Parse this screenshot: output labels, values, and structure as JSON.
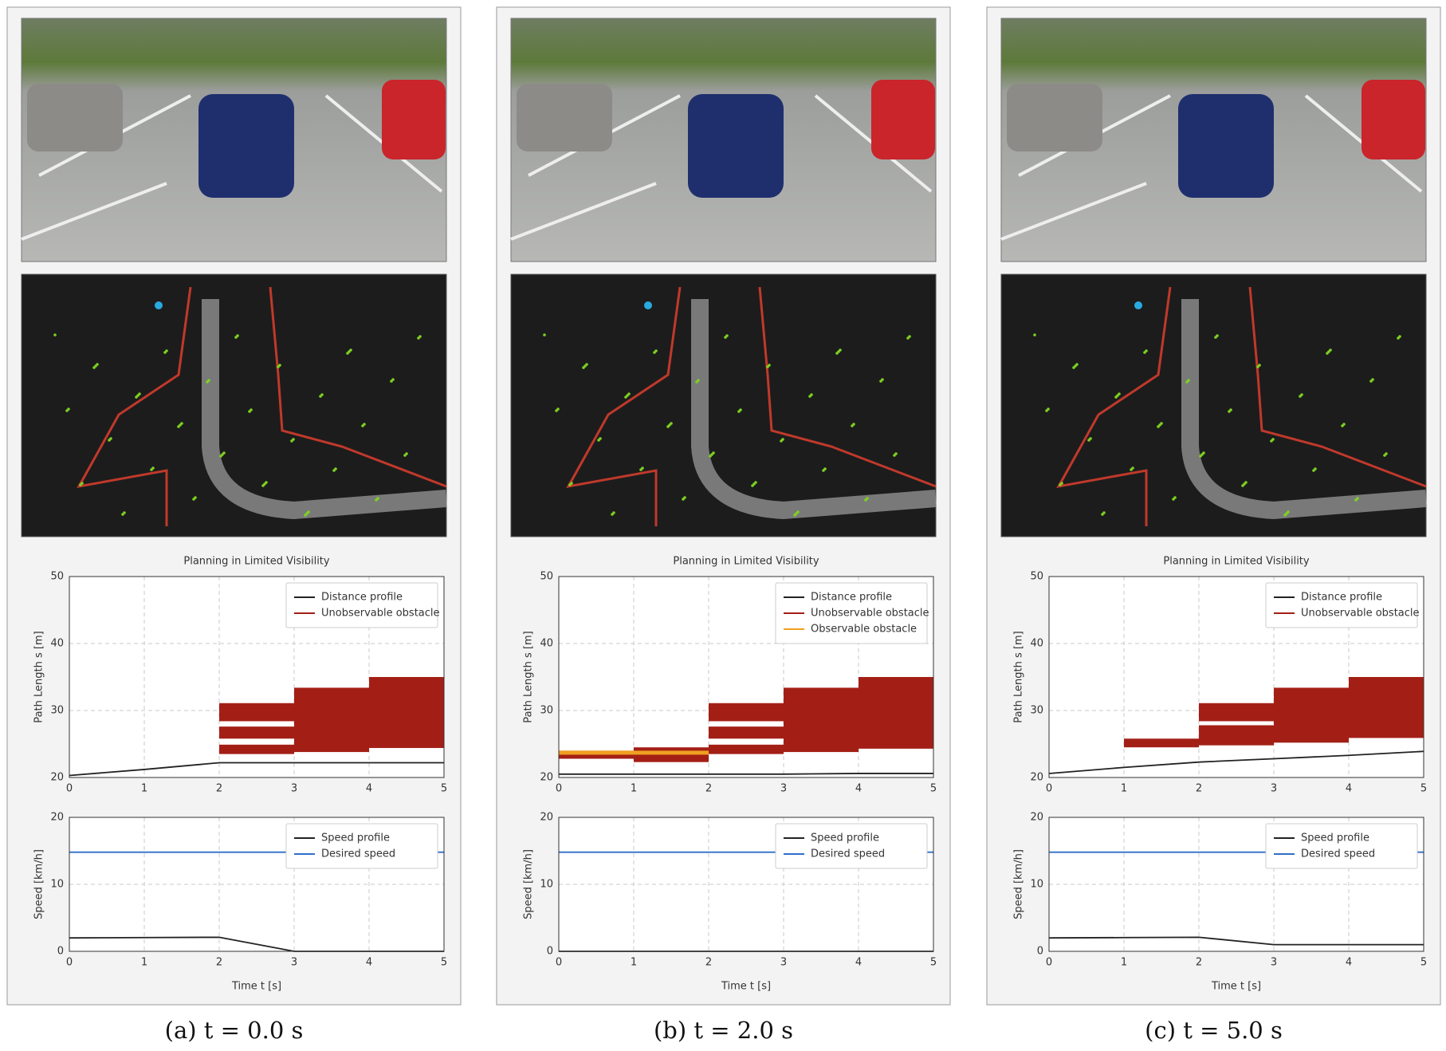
{
  "chart_data": [
    {
      "type": "line",
      "title": "Planning in Limited Visibility",
      "ylabel": "Path Length s [m]",
      "xlim": [
        0,
        5
      ],
      "ylim": [
        20,
        50
      ],
      "xticks": [
        0,
        1,
        2,
        3,
        4,
        5
      ],
      "yticks": [
        20,
        30,
        40,
        50
      ],
      "grid": true,
      "legend": "upper right",
      "x": [
        0,
        1,
        2,
        3,
        4,
        5
      ],
      "series": [
        {
          "name": "Distance profile",
          "color": "#222222",
          "values": [
            20.3,
            21.2,
            22.2,
            22.2,
            22.2,
            22.2
          ]
        },
        {
          "name": "Unobservable obstacle",
          "color": "#a31f16",
          "intervals": [
            {
              "t": [
                2,
                3
              ],
              "s": [
                23.5,
                24.9
              ]
            },
            {
              "t": [
                2,
                3
              ],
              "s": [
                25.8,
                27.6
              ]
            },
            {
              "t": [
                2,
                3
              ],
              "s": [
                28.4,
                31.1
              ]
            },
            {
              "t": [
                3,
                4
              ],
              "s": [
                23.8,
                33.4
              ]
            },
            {
              "t": [
                4,
                5
              ],
              "s": [
                24.4,
                35
              ]
            }
          ]
        }
      ]
    },
    {
      "type": "line",
      "ylabel": "Speed [km/h]",
      "xlabel": "Time t [s]",
      "xlim": [
        0,
        5
      ],
      "ylim": [
        0,
        20
      ],
      "xticks": [
        0,
        1,
        2,
        3,
        4,
        5
      ],
      "yticks": [
        0,
        10,
        20
      ],
      "grid": true,
      "legend": "upper right",
      "x": [
        0,
        1,
        2,
        3,
        4,
        5
      ],
      "series": [
        {
          "name": "Speed profile",
          "color": "#222222",
          "values": [
            2.0,
            2.05,
            2.1,
            0,
            0,
            0
          ]
        },
        {
          "name": "Desired speed",
          "color": "#2f6fc9",
          "values": [
            14.8,
            14.8,
            14.8,
            14.8,
            14.8,
            14.8
          ]
        }
      ]
    },
    {
      "type": "line",
      "title": "Planning in Limited Visibility",
      "ylabel": "Path Length s [m]",
      "xlim": [
        0,
        5
      ],
      "ylim": [
        20,
        50
      ],
      "xticks": [
        0,
        1,
        2,
        3,
        4,
        5
      ],
      "yticks": [
        20,
        30,
        40,
        50
      ],
      "grid": true,
      "legend": "upper right",
      "x": [
        0,
        1,
        2,
        3,
        4,
        5
      ],
      "series": [
        {
          "name": "Distance profile",
          "color": "#222222",
          "values": [
            20.5,
            20.5,
            20.5,
            20.5,
            20.6,
            20.6
          ]
        },
        {
          "name": "Unobservable obstacle",
          "color": "#a31f16",
          "intervals": [
            {
              "t": [
                0,
                1
              ],
              "s": [
                22.8,
                24.0
              ]
            },
            {
              "t": [
                1,
                2
              ],
              "s": [
                22.3,
                24.5
              ]
            },
            {
              "t": [
                2,
                3
              ],
              "s": [
                23.5,
                24.9
              ]
            },
            {
              "t": [
                2,
                3
              ],
              "s": [
                25.8,
                27.6
              ]
            },
            {
              "t": [
                2,
                3
              ],
              "s": [
                28.4,
                31.1
              ]
            },
            {
              "t": [
                3,
                4
              ],
              "s": [
                23.8,
                33.4
              ]
            },
            {
              "t": [
                4,
                5
              ],
              "s": [
                24.3,
                35
              ]
            }
          ]
        },
        {
          "name": "Observable obstacle",
          "color": "#f0a020",
          "intervals": [
            {
              "t": [
                0,
                2
              ],
              "s": [
                23.4,
                24.0
              ]
            }
          ]
        }
      ]
    },
    {
      "type": "line",
      "ylabel": "Speed [km/h]",
      "xlabel": "Time t [s]",
      "xlim": [
        0,
        5
      ],
      "ylim": [
        0,
        20
      ],
      "xticks": [
        0,
        1,
        2,
        3,
        4,
        5
      ],
      "yticks": [
        0,
        10,
        20
      ],
      "grid": true,
      "legend": "upper right",
      "x": [
        0,
        1,
        2,
        3,
        4,
        5
      ],
      "series": [
        {
          "name": "Speed profile",
          "color": "#222222",
          "values": [
            0,
            0,
            0,
            0,
            0,
            0
          ]
        },
        {
          "name": "Desired speed",
          "color": "#2f6fc9",
          "values": [
            14.8,
            14.8,
            14.8,
            14.8,
            14.8,
            14.8
          ]
        }
      ]
    },
    {
      "type": "line",
      "title": "Planning in Limited Visibility",
      "ylabel": "Path Length s [m]",
      "xlim": [
        0,
        5
      ],
      "ylim": [
        20,
        50
      ],
      "xticks": [
        0,
        1,
        2,
        3,
        4,
        5
      ],
      "yticks": [
        20,
        30,
        40,
        50
      ],
      "grid": true,
      "legend": "upper right",
      "x": [
        0,
        1,
        2,
        3,
        4,
        5
      ],
      "series": [
        {
          "name": "Distance profile",
          "color": "#222222",
          "values": [
            20.6,
            21.5,
            22.3,
            22.8,
            23.3,
            23.9
          ]
        },
        {
          "name": "Unobservable obstacle",
          "color": "#a31f16",
          "intervals": [
            {
              "t": [
                1,
                2
              ],
              "s": [
                24.5,
                25.8
              ]
            },
            {
              "t": [
                2,
                3
              ],
              "s": [
                24.8,
                27.8
              ]
            },
            {
              "t": [
                2,
                3
              ],
              "s": [
                28.4,
                31.1
              ]
            },
            {
              "t": [
                3,
                4
              ],
              "s": [
                25.2,
                33.4
              ]
            },
            {
              "t": [
                4,
                5
              ],
              "s": [
                25.9,
                35
              ]
            }
          ]
        }
      ]
    },
    {
      "type": "line",
      "ylabel": "Speed [km/h]",
      "xlabel": "Time t [s]",
      "xlim": [
        0,
        5
      ],
      "ylim": [
        0,
        20
      ],
      "xticks": [
        0,
        1,
        2,
        3,
        4,
        5
      ],
      "yticks": [
        0,
        10,
        20
      ],
      "grid": true,
      "legend": "upper right",
      "x": [
        0,
        1,
        2,
        3,
        4,
        5
      ],
      "series": [
        {
          "name": "Speed profile",
          "color": "#222222",
          "values": [
            2.0,
            2.05,
            2.1,
            1.0,
            1.0,
            1.0
          ]
        },
        {
          "name": "Desired speed",
          "color": "#2f6fc9",
          "values": [
            14.8,
            14.8,
            14.8,
            14.8,
            14.8,
            14.8
          ]
        }
      ]
    }
  ],
  "captions": [
    "(a) t = 0.0 s",
    "(b) t = 2.0 s",
    "(c) t = 5.0 s"
  ]
}
